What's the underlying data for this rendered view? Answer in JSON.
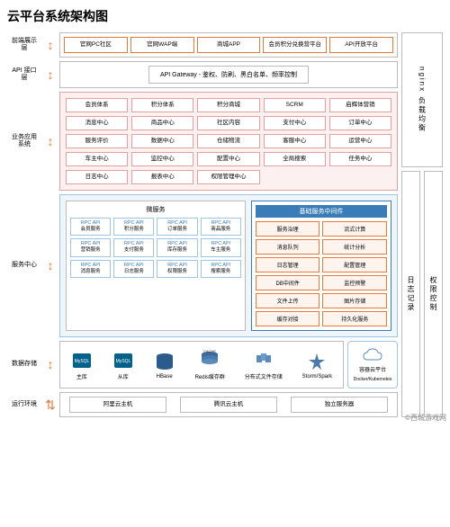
{
  "title": "云平台系统架构图",
  "watermark": "©西城游戏网",
  "layers": {
    "frontend": {
      "label": "前端展示层",
      "items": [
        "官网PC社区",
        "官网WAP端",
        "商城APP",
        "会员积分兑换营平台",
        "API开放平台"
      ]
    },
    "api": {
      "label": "API 接口层",
      "text": "API Gateway - 鉴权、防刷、黑白名单、频率控制"
    },
    "biz": {
      "label": "业务应用系统",
      "items": [
        "会员体系",
        "积分体系",
        "积分商城",
        "SCRM",
        "启辉体营销",
        "消息中心",
        "商品中心",
        "社区内容",
        "支付中心",
        "订单中心",
        "服务评价",
        "数据中心",
        "仓储物流",
        "客服中心",
        "运营中心",
        "车主中心",
        "监控中心",
        "配置中心",
        "全局搜索",
        "任务中心",
        "日志中心",
        "报表中心",
        "权限管理中心"
      ]
    },
    "svc": {
      "label": "服务中心",
      "micro": {
        "title": "微服务",
        "items": [
          {
            "t": "RPC API",
            "b": "会员服务"
          },
          {
            "t": "RPC API",
            "b": "积分服务"
          },
          {
            "t": "RPC API",
            "b": "订单服务"
          },
          {
            "t": "RPC API",
            "b": "商品服务"
          },
          {
            "t": "RPC API",
            "b": "营销服务"
          },
          {
            "t": "RPC API",
            "b": "支付服务"
          },
          {
            "t": "RPC API",
            "b": "库存服务"
          },
          {
            "t": "RPC API",
            "b": "车主服务"
          },
          {
            "t": "RPC API",
            "b": "消息服务"
          },
          {
            "t": "RPC API",
            "b": "日志服务"
          },
          {
            "t": "RPC API",
            "b": "权限服务"
          },
          {
            "t": "RPC API",
            "b": "搜索服务"
          }
        ]
      },
      "infra": {
        "title": "基础服务中间件",
        "items": [
          "服务治理",
          "流式计算",
          "消息队列",
          "统计分析",
          "日志管理",
          "配置管理",
          "DB中间件",
          "监控预警",
          "文件上传",
          "图片存储",
          "缓存对接",
          "持久化服务"
        ]
      }
    },
    "storage": {
      "label": "数据存储",
      "items": [
        {
          "name": "主库",
          "icon": "mysql",
          "color": "#00618a"
        },
        {
          "name": "从库",
          "icon": "mysql",
          "color": "#00618a"
        },
        {
          "name": "HBase",
          "icon": "db",
          "color": "#2b5a8c"
        },
        {
          "name": "Redis缓存群",
          "icon": "cache",
          "color": "#3a6b9c"
        },
        {
          "name": "分布式文件存储",
          "icon": "files",
          "color": "#5a8bbc"
        },
        {
          "name": "Storm/Spark",
          "icon": "spark",
          "color": "#4a7bac"
        }
      ]
    },
    "runtime": {
      "label": "运行环境",
      "items": [
        "阿里云主机",
        "腾讯云主机",
        "独立服务器"
      ]
    }
  },
  "side": {
    "nginx": "nginx 负载均衡",
    "log": "日志记录",
    "auth": "权限控制",
    "docker": {
      "title": "容器云平台",
      "sub": "Docker/Kubernetes"
    }
  },
  "colors": {
    "frontend_border": "#e27b3c",
    "biz_border": "#e2a0a0",
    "svc_border": "#a0c4e2",
    "infra_header": "#3a7cb8",
    "infra_box": "#e27b3c",
    "arrow": "#e27b3c"
  }
}
